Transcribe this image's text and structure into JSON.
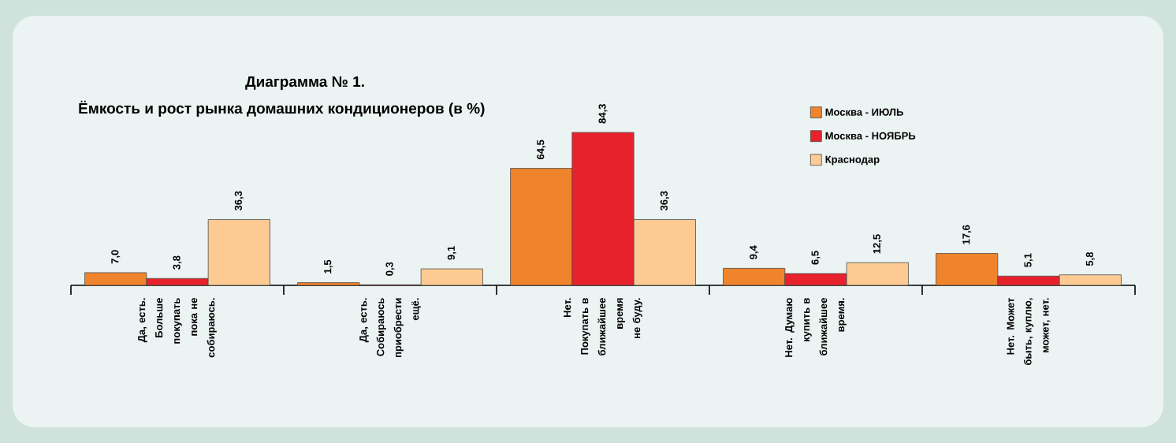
{
  "chart_data": {
    "type": "bar",
    "title": "Диаграмма № 1.",
    "subtitle": "Ёмкость и рост рынка домашних кондиционеров (в %)",
    "categories": [
      "Да, есть. Больше покупать пока не собираюсь.",
      "Да, есть. Собираюсь приобрести ещё.",
      "Нет. Покупать в ближайшее время не буду.",
      "Нет. Думаю купить в ближайшее время.",
      "Нет. Может быть, куплю, может, нет."
    ],
    "series": [
      {
        "name": "Москва - ИЮЛЬ",
        "color": "#f0842c",
        "values": [
          7.0,
          1.5,
          64.5,
          9.4,
          17.6
        ],
        "value_labels": [
          "7,0",
          "1,5",
          "64,5",
          "9,4",
          "17,6"
        ]
      },
      {
        "name": "Москва - НОЯБРЬ",
        "color": "#e8222c",
        "values": [
          3.8,
          0.3,
          84.3,
          6.5,
          5.1
        ],
        "value_labels": [
          "3,8",
          "0,3",
          "84,3",
          "6,5",
          "5,1"
        ]
      },
      {
        "name": "Краснодар",
        "color": "#fcca92",
        "values": [
          36.3,
          9.1,
          36.3,
          12.5,
          5.8
        ],
        "value_labels": [
          "36,3",
          "9,1",
          "36,3",
          "12,5",
          "5,8"
        ]
      }
    ],
    "legend": "top right"
  }
}
